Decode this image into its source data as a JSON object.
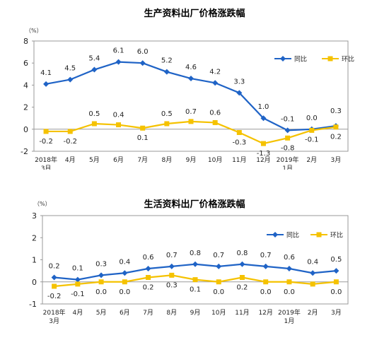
{
  "chart_data": [
    {
      "type": "line",
      "title": "生产资料出厂价格涨跌幅",
      "unit": "（%）",
      "ylim": [
        -2,
        8
      ],
      "yticks": [
        -2,
        0,
        2,
        4,
        6,
        8
      ],
      "categories": [
        [
          "2018年",
          "3月"
        ],
        [
          "4月"
        ],
        [
          "5月"
        ],
        [
          "6月"
        ],
        [
          "7月"
        ],
        [
          "8月"
        ],
        [
          "9月"
        ],
        [
          "10月"
        ],
        [
          "11月"
        ],
        [
          "12月"
        ],
        [
          "2019年",
          "1月"
        ],
        [
          "2月"
        ],
        [
          "3月"
        ]
      ],
      "series": [
        {
          "name": "同比",
          "color": "#1f63c6",
          "marker": "diamond",
          "values": [
            4.1,
            4.5,
            5.4,
            6.1,
            6.0,
            5.2,
            4.6,
            4.2,
            3.3,
            1.0,
            -0.1,
            0.0,
            0.3
          ],
          "labels": [
            "4.1",
            "4.5",
            "5.4",
            "6.1",
            "6.0",
            "5.2",
            "4.6",
            "4.2",
            "3.3",
            "1.0",
            "-0.1",
            "0.0",
            "0.3"
          ]
        },
        {
          "name": "环比",
          "color": "#f5c200",
          "marker": "square",
          "values": [
            -0.2,
            -0.2,
            0.5,
            0.4,
            0.1,
            0.5,
            0.7,
            0.6,
            -0.3,
            -1.3,
            -0.8,
            -0.1,
            0.2
          ],
          "labels": [
            "-0.2",
            "-0.2",
            "0.5",
            "0.4",
            "0.1",
            "0.5",
            "0.7",
            "0.6",
            "-0.3",
            "-1.3",
            "-0.8",
            "-0.1",
            "0.2"
          ]
        }
      ],
      "legend": "top-right",
      "grid": false
    },
    {
      "type": "line",
      "title": "生活资料出厂价格涨跌幅",
      "unit": "（%）",
      "ylim": [
        -1,
        3
      ],
      "yticks": [
        -1,
        0,
        1,
        2,
        3
      ],
      "categories": [
        [
          "2018年",
          "3月"
        ],
        [
          "4月"
        ],
        [
          "5月"
        ],
        [
          "6月"
        ],
        [
          "7月"
        ],
        [
          "8月"
        ],
        [
          "9月"
        ],
        [
          "10月"
        ],
        [
          "11月"
        ],
        [
          "12月"
        ],
        [
          "2019年",
          "1月"
        ],
        [
          "2月"
        ],
        [
          "3月"
        ]
      ],
      "series": [
        {
          "name": "同比",
          "color": "#1f63c6",
          "marker": "diamond",
          "values": [
            0.2,
            0.1,
            0.3,
            0.4,
            0.6,
            0.7,
            0.8,
            0.7,
            0.8,
            0.7,
            0.6,
            0.4,
            0.5
          ],
          "labels": [
            "0.2",
            "0.1",
            "0.3",
            "0.4",
            "0.6",
            "0.7",
            "0.8",
            "0.7",
            "0.8",
            "0.7",
            "0.6",
            "0.4",
            "0.5"
          ]
        },
        {
          "name": "环比",
          "color": "#f5c200",
          "marker": "square",
          "values": [
            -0.2,
            -0.1,
            0.0,
            0.0,
            0.2,
            0.3,
            0.1,
            0.0,
            0.2,
            0.0,
            0.0,
            -0.1,
            0.0
          ],
          "labels": [
            "-0.2",
            "-0.1",
            "0.0",
            "0.0",
            "0.2",
            "0.3",
            "0.1",
            "0.0",
            "0.2",
            "0.0",
            "0.0",
            "",
            "0.0"
          ]
        }
      ],
      "legend": "top-right",
      "grid": false
    }
  ]
}
